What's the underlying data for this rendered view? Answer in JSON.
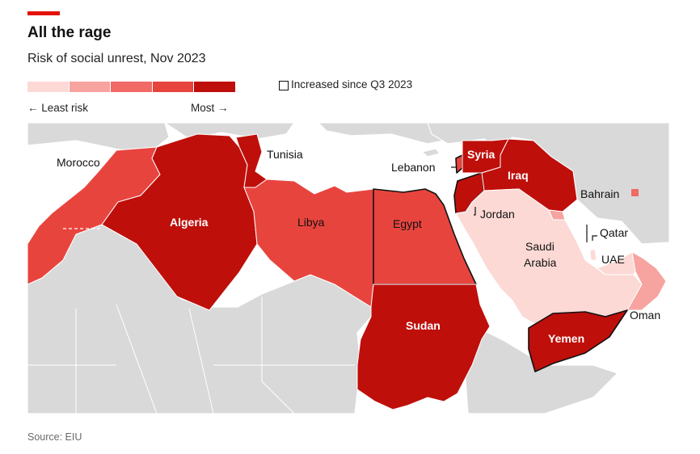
{
  "title": "All the rage",
  "subtitle": "Risk of social unrest, Nov 2023",
  "legend": {
    "scale_colors": [
      "#fcd9d5",
      "#f7a3a0",
      "#f16a66",
      "#e8443e",
      "#bf0f0b"
    ],
    "least_label": "← Least risk",
    "most_label": "Most →",
    "increased_label": "Increased since Q3 2023"
  },
  "colors": {
    "sea": "#ffffff",
    "land": "#d9d9d9",
    "border": "#ffffff",
    "accent": "#e3120b"
  },
  "map": {
    "countries": [
      {
        "name": "Morocco",
        "risk_level": 4,
        "increased": false
      },
      {
        "name": "Algeria",
        "risk_level": 5,
        "increased": false
      },
      {
        "name": "Tunisia",
        "risk_level": 5,
        "increased": false
      },
      {
        "name": "Libya",
        "risk_level": 4,
        "increased": false
      },
      {
        "name": "Egypt",
        "risk_level": 4,
        "increased": true
      },
      {
        "name": "Sudan",
        "risk_level": 5,
        "increased": false
      },
      {
        "name": "Lebanon",
        "risk_level": 4,
        "increased": true
      },
      {
        "name": "Syria",
        "risk_level": 5,
        "increased": false
      },
      {
        "name": "Jordan",
        "risk_level": 5,
        "increased": true
      },
      {
        "name": "Iraq",
        "risk_level": 5,
        "increased": false
      },
      {
        "name": "Saudi Arabia",
        "risk_level": 1,
        "increased": false
      },
      {
        "name": "Yemen",
        "risk_level": 5,
        "increased": true
      },
      {
        "name": "Oman",
        "risk_level": 2,
        "increased": false
      },
      {
        "name": "UAE",
        "risk_level": 1,
        "increased": false
      },
      {
        "name": "Qatar",
        "risk_level": 1,
        "increased": false
      },
      {
        "name": "Bahrain",
        "risk_level": 3,
        "increased": false
      },
      {
        "name": "Kuwait",
        "risk_level": 2,
        "increased": false
      }
    ],
    "labels": {
      "morocco": "Morocco",
      "algeria": "Algeria",
      "tunisia": "Tunisia",
      "libya": "Libya",
      "egypt": "Egypt",
      "sudan": "Sudan",
      "lebanon": "Lebanon",
      "syria": "Syria",
      "jordan": "Jordan",
      "iraq": "Iraq",
      "saudi_line1": "Saudi",
      "saudi_line2": "Arabia",
      "yemen": "Yemen",
      "oman": "Oman",
      "uae": "UAE",
      "qatar": "Qatar",
      "bahrain": "Bahrain"
    }
  },
  "source": "Source: EIU"
}
